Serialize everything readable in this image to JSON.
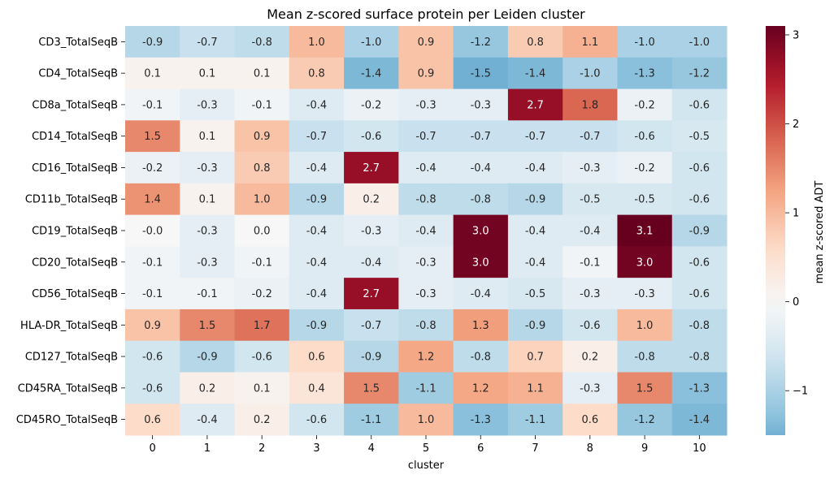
{
  "chart_data": {
    "type": "heatmap",
    "title": "Mean z-scored surface protein per Leiden cluster",
    "xlabel": "cluster",
    "ylabel": "",
    "colorbar_label": "mean z-scored ADT",
    "colorbar_ticks": [
      3,
      2,
      1,
      0,
      -1
    ],
    "colorbar_tick_labels": [
      "3",
      "2",
      "1",
      "0",
      "−1"
    ],
    "vmin": -1.5,
    "vmax": 3.1,
    "colormap": "RdBu_r",
    "categories": [
      "0",
      "1",
      "2",
      "3",
      "4",
      "5",
      "6",
      "7",
      "8",
      "9",
      "10"
    ],
    "rows": [
      "CD3_TotalSeqB",
      "CD4_TotalSeqB",
      "CD8a_TotalSeqB",
      "CD14_TotalSeqB",
      "CD16_TotalSeqB",
      "CD11b_TotalSeqB",
      "CD19_TotalSeqB",
      "CD20_TotalSeqB",
      "CD56_TotalSeqB",
      "HLA-DR_TotalSeqB",
      "CD127_TotalSeqB",
      "CD45RA_TotalSeqB",
      "CD45RO_TotalSeqB"
    ],
    "values": [
      [
        -0.9,
        -0.7,
        -0.8,
        1.0,
        -1.0,
        0.9,
        -1.2,
        0.8,
        1.1,
        -1.0,
        -1.0
      ],
      [
        0.1,
        0.1,
        0.1,
        0.8,
        -1.4,
        0.9,
        -1.5,
        -1.4,
        -1.0,
        -1.3,
        -1.2
      ],
      [
        -0.1,
        -0.3,
        -0.1,
        -0.4,
        -0.2,
        -0.3,
        -0.3,
        2.7,
        1.8,
        -0.2,
        -0.6
      ],
      [
        1.5,
        0.1,
        0.9,
        -0.7,
        -0.6,
        -0.7,
        -0.7,
        -0.7,
        -0.7,
        -0.6,
        -0.5
      ],
      [
        -0.2,
        -0.3,
        0.8,
        -0.4,
        2.7,
        -0.4,
        -0.4,
        -0.4,
        -0.3,
        -0.2,
        -0.6
      ],
      [
        1.4,
        0.1,
        1.0,
        -0.9,
        0.2,
        -0.8,
        -0.8,
        -0.9,
        -0.5,
        -0.5,
        -0.6
      ],
      [
        -0.0,
        -0.3,
        0.0,
        -0.4,
        -0.3,
        -0.4,
        3.0,
        -0.4,
        -0.4,
        3.1,
        -0.9
      ],
      [
        -0.1,
        -0.3,
        -0.1,
        -0.4,
        -0.4,
        -0.3,
        3.0,
        -0.4,
        -0.1,
        3.0,
        -0.6
      ],
      [
        -0.1,
        -0.1,
        -0.2,
        -0.4,
        2.7,
        -0.3,
        -0.4,
        -0.5,
        -0.3,
        -0.3,
        -0.6
      ],
      [
        0.9,
        1.5,
        1.7,
        -0.9,
        -0.7,
        -0.8,
        1.3,
        -0.9,
        -0.6,
        1.0,
        -0.8
      ],
      [
        -0.6,
        -0.9,
        -0.6,
        0.6,
        -0.9,
        1.2,
        -0.8,
        0.7,
        0.2,
        -0.8,
        -0.8
      ],
      [
        -0.6,
        0.2,
        0.1,
        0.4,
        1.5,
        -1.1,
        1.2,
        1.1,
        -0.3,
        1.5,
        -1.3
      ],
      [
        0.6,
        -0.4,
        0.2,
        -0.6,
        -1.1,
        1.0,
        -1.3,
        -1.1,
        0.6,
        -1.2,
        -1.4
      ]
    ],
    "value_labels": [
      [
        "-0.9",
        "-0.7",
        "-0.8",
        "1.0",
        "-1.0",
        "0.9",
        "-1.2",
        "0.8",
        "1.1",
        "-1.0",
        "-1.0"
      ],
      [
        "0.1",
        "0.1",
        "0.1",
        "0.8",
        "-1.4",
        "0.9",
        "-1.5",
        "-1.4",
        "-1.0",
        "-1.3",
        "-1.2"
      ],
      [
        "-0.1",
        "-0.3",
        "-0.1",
        "-0.4",
        "-0.2",
        "-0.3",
        "-0.3",
        "2.7",
        "1.8",
        "-0.2",
        "-0.6"
      ],
      [
        "1.5",
        "0.1",
        "0.9",
        "-0.7",
        "-0.6",
        "-0.7",
        "-0.7",
        "-0.7",
        "-0.7",
        "-0.6",
        "-0.5"
      ],
      [
        "-0.2",
        "-0.3",
        "0.8",
        "-0.4",
        "2.7",
        "-0.4",
        "-0.4",
        "-0.4",
        "-0.3",
        "-0.2",
        "-0.6"
      ],
      [
        "1.4",
        "0.1",
        "1.0",
        "-0.9",
        "0.2",
        "-0.8",
        "-0.8",
        "-0.9",
        "-0.5",
        "-0.5",
        "-0.6"
      ],
      [
        "-0.0",
        "-0.3",
        "0.0",
        "-0.4",
        "-0.3",
        "-0.4",
        "3.0",
        "-0.4",
        "-0.4",
        "3.1",
        "-0.9"
      ],
      [
        "-0.1",
        "-0.3",
        "-0.1",
        "-0.4",
        "-0.4",
        "-0.3",
        "3.0",
        "-0.4",
        "-0.1",
        "3.0",
        "-0.6"
      ],
      [
        "-0.1",
        "-0.1",
        "-0.2",
        "-0.4",
        "2.7",
        "-0.3",
        "-0.4",
        "-0.5",
        "-0.3",
        "-0.3",
        "-0.6"
      ],
      [
        "0.9",
        "1.5",
        "1.7",
        "-0.9",
        "-0.7",
        "-0.8",
        "1.3",
        "-0.9",
        "-0.6",
        "1.0",
        "-0.8"
      ],
      [
        "-0.6",
        "-0.9",
        "-0.6",
        "0.6",
        "-0.9",
        "1.2",
        "-0.8",
        "0.7",
        "0.2",
        "-0.8",
        "-0.8"
      ],
      [
        "-0.6",
        "0.2",
        "0.1",
        "0.4",
        "1.5",
        "-1.1",
        "1.2",
        "1.1",
        "-0.3",
        "1.5",
        "-1.3"
      ],
      [
        "0.6",
        "-0.4",
        "0.2",
        "-0.6",
        "-1.1",
        "1.0",
        "-1.3",
        "-1.1",
        "0.6",
        "-1.2",
        "-1.4"
      ]
    ]
  }
}
